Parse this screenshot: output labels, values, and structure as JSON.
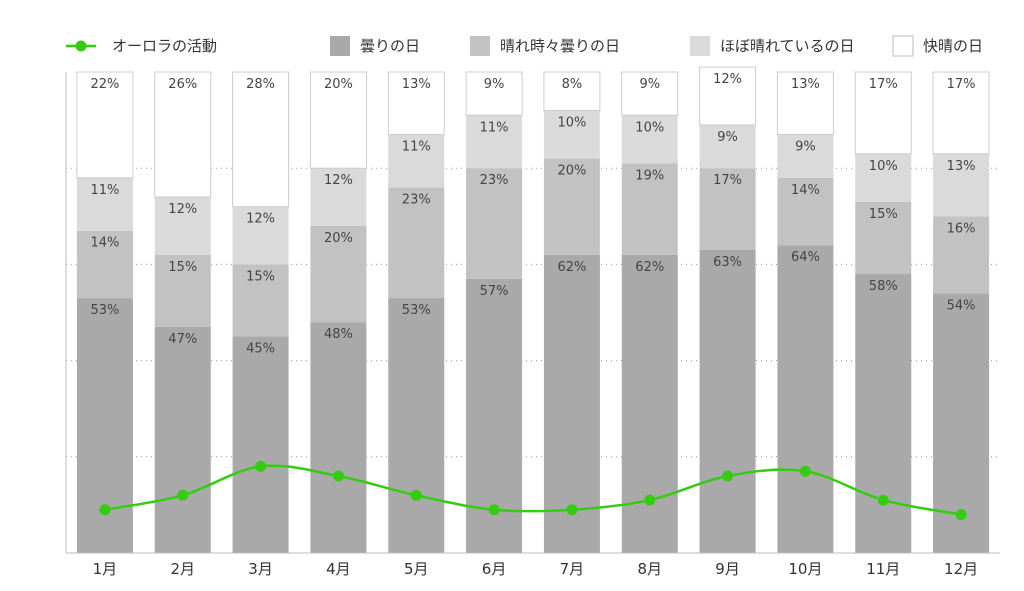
{
  "chart_data": {
    "type": "bar",
    "stacked": true,
    "categories": [
      "1月",
      "2月",
      "3月",
      "4月",
      "5月",
      "6月",
      "7月",
      "8月",
      "9月",
      "10月",
      "11月",
      "12月"
    ],
    "series": [
      {
        "name": "曇りの日",
        "color": "#a9a9a9",
        "values": [
          53,
          47,
          45,
          48,
          53,
          57,
          62,
          62,
          63,
          64,
          58,
          54
        ]
      },
      {
        "name": "晴れ時々曇りの日",
        "color": "#c2c2c2",
        "values": [
          14,
          15,
          15,
          20,
          23,
          23,
          20,
          19,
          17,
          14,
          15,
          16
        ]
      },
      {
        "name": "ほぼ晴れているの日",
        "color": "#dadada",
        "values": [
          11,
          12,
          12,
          12,
          11,
          11,
          10,
          10,
          9,
          9,
          10,
          13
        ]
      },
      {
        "name": "快晴の日",
        "color": "#ffffff",
        "values": [
          22,
          26,
          28,
          20,
          13,
          9,
          8,
          9,
          12,
          13,
          17,
          17
        ]
      }
    ],
    "line_series": {
      "name": "オーロラの活動",
      "color": "#33cc11",
      "values": [
        9,
        12,
        18,
        16,
        12,
        9,
        9,
        11,
        16,
        17,
        11,
        8
      ]
    },
    "value_suffix": "%",
    "ylim": [
      0,
      100
    ],
    "line_ylim": [
      0,
      100
    ],
    "grid": "horizontal-dotted",
    "legend_position": "top"
  }
}
